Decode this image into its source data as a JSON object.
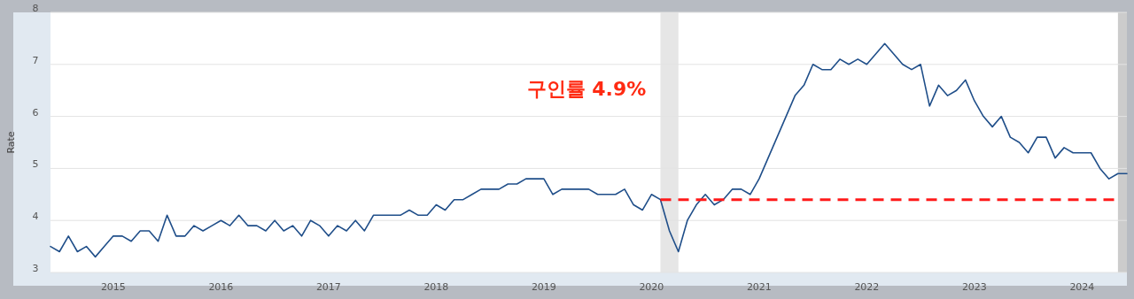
{
  "chart_data": {
    "type": "line",
    "ylabel": "Rate",
    "annotations": [
      "구인률 4.9%"
    ],
    "x": [
      "2014-06",
      "2014-07",
      "2014-08",
      "2014-09",
      "2014-10",
      "2014-11",
      "2014-12",
      "2015-01",
      "2015-02",
      "2015-03",
      "2015-04",
      "2015-05",
      "2015-06",
      "2015-07",
      "2015-08",
      "2015-09",
      "2015-10",
      "2015-11",
      "2015-12",
      "2016-01",
      "2016-02",
      "2016-03",
      "2016-04",
      "2016-05",
      "2016-06",
      "2016-07",
      "2016-08",
      "2016-09",
      "2016-10",
      "2016-11",
      "2016-12",
      "2017-01",
      "2017-02",
      "2017-03",
      "2017-04",
      "2017-05",
      "2017-06",
      "2017-07",
      "2017-08",
      "2017-09",
      "2017-10",
      "2017-11",
      "2017-12",
      "2018-01",
      "2018-02",
      "2018-03",
      "2018-04",
      "2018-05",
      "2018-06",
      "2018-07",
      "2018-08",
      "2018-09",
      "2018-10",
      "2018-11",
      "2018-12",
      "2019-01",
      "2019-02",
      "2019-03",
      "2019-04",
      "2019-05",
      "2019-06",
      "2019-07",
      "2019-08",
      "2019-09",
      "2019-10",
      "2019-11",
      "2019-12",
      "2020-01",
      "2020-02",
      "2020-03",
      "2020-04",
      "2020-05",
      "2020-06",
      "2020-07",
      "2020-08",
      "2020-09",
      "2020-10",
      "2020-11",
      "2020-12",
      "2021-01",
      "2021-02",
      "2021-03",
      "2021-04",
      "2021-05",
      "2021-06",
      "2021-07",
      "2021-08",
      "2021-09",
      "2021-10",
      "2021-11",
      "2021-12",
      "2022-01",
      "2022-02",
      "2022-03",
      "2022-04",
      "2022-05",
      "2022-06",
      "2022-07",
      "2022-08",
      "2022-09",
      "2022-10",
      "2022-11",
      "2022-12",
      "2023-01",
      "2023-02",
      "2023-03",
      "2023-04",
      "2023-05",
      "2023-06",
      "2023-07",
      "2023-08",
      "2023-09",
      "2023-10",
      "2023-11",
      "2023-12",
      "2024-01",
      "2024-02",
      "2024-03",
      "2024-04",
      "2024-05",
      "2024-06"
    ],
    "series": [
      {
        "color": "#1f4e89",
        "values": [
          3.5,
          3.4,
          3.7,
          3.4,
          3.5,
          3.3,
          3.5,
          3.7,
          3.7,
          3.6,
          3.8,
          3.8,
          3.6,
          4.1,
          3.7,
          3.7,
          3.9,
          3.8,
          3.9,
          4.0,
          3.9,
          4.1,
          3.9,
          3.9,
          3.8,
          4.0,
          3.8,
          3.9,
          3.7,
          4.0,
          3.9,
          3.7,
          3.9,
          3.8,
          4.0,
          3.8,
          4.1,
          4.1,
          4.1,
          4.1,
          4.2,
          4.1,
          4.1,
          4.3,
          4.2,
          4.4,
          4.4,
          4.5,
          4.6,
          4.6,
          4.6,
          4.7,
          4.7,
          4.8,
          4.8,
          4.8,
          4.5,
          4.6,
          4.6,
          4.6,
          4.6,
          4.5,
          4.5,
          4.5,
          4.6,
          4.3,
          4.2,
          4.5,
          4.4,
          3.8,
          3.4,
          4.0,
          4.3,
          4.5,
          4.3,
          4.4,
          4.6,
          4.6,
          4.5,
          4.8,
          5.2,
          5.6,
          6.0,
          6.4,
          6.6,
          7.0,
          6.9,
          6.9,
          7.1,
          7.0,
          7.1,
          7.0,
          7.2,
          7.4,
          7.2,
          7.0,
          6.9,
          7.0,
          6.2,
          6.6,
          6.4,
          6.5,
          6.7,
          6.3,
          6.0,
          5.8,
          6.0,
          5.6,
          5.5,
          5.3,
          5.6,
          5.6,
          5.2,
          5.4,
          5.3,
          5.3,
          5.3,
          5.0,
          4.8,
          4.9,
          4.9
        ]
      },
      {
        "type": "line",
        "color": "#ff1a1a",
        "line_style": "dashed",
        "x": [
          "2020-02",
          "2024-05"
        ],
        "values": [
          4.4,
          4.4
        ]
      }
    ],
    "xlim": [
      "2014-06",
      "2024-06"
    ],
    "ylim": [
      3,
      8
    ],
    "xticks": [
      "2015",
      "2016",
      "2017",
      "2018",
      "2019",
      "2020",
      "2021",
      "2022",
      "2023",
      "2024"
    ],
    "yticks": [
      3,
      4,
      5,
      6,
      7,
      8
    ],
    "grid": "y",
    "bands": [
      {
        "axis": "x",
        "from": "2020-02",
        "to": "2020-04",
        "color": "#e6e6e6"
      },
      {
        "axis": "x",
        "from": "2024-05",
        "to": "2024-06",
        "color": "#cccccc"
      }
    ]
  }
}
